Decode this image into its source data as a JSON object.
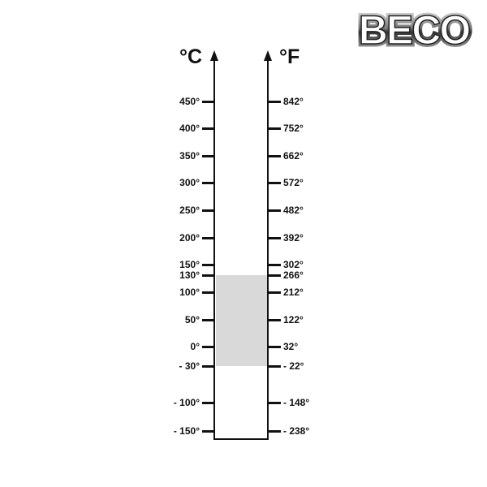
{
  "logo": {
    "text": "BECO"
  },
  "scale": {
    "celsius_unit": "°C",
    "fahrenheit_unit": "°F",
    "ticks": [
      {
        "c": "450°",
        "f": "842°"
      },
      {
        "c": "400°",
        "f": "752°"
      },
      {
        "c": "350°",
        "f": "662°"
      },
      {
        "c": "300°",
        "f": "572°"
      },
      {
        "c": "250°",
        "f": "482°"
      },
      {
        "c": "200°",
        "f": "392°"
      },
      {
        "c": "150°",
        "f": "302°"
      },
      {
        "c": "130°",
        "f": "266°"
      },
      {
        "c": "100°",
        "f": "212°"
      },
      {
        "c": "50°",
        "f": "122°"
      },
      {
        "c": "0°",
        "f": "32°"
      },
      {
        "c": "- 30°",
        "f": "- 22°"
      },
      {
        "c": "- 100°",
        "f": "- 148°"
      },
      {
        "c": "- 150°",
        "f": "- 238°"
      }
    ],
    "operating_range": {
      "min_c": -30,
      "max_c": 130,
      "min_f": -22,
      "max_f": 266,
      "color": "#d9d9d9"
    }
  }
}
